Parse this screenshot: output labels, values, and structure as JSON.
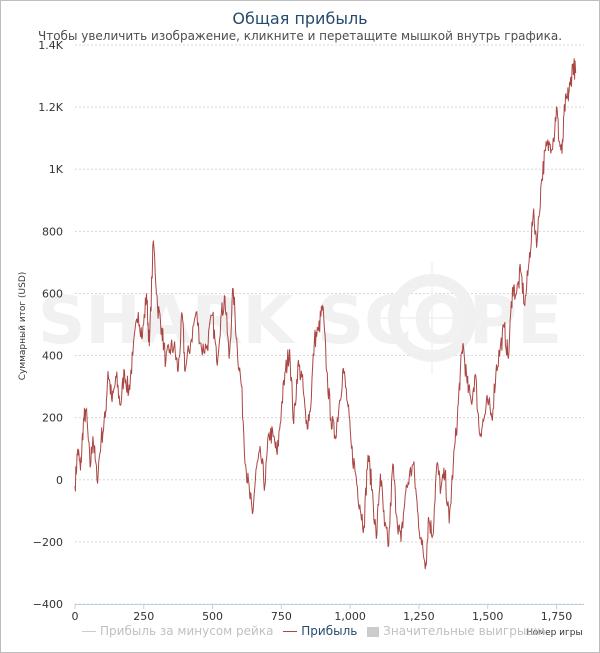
{
  "chart": {
    "title": "Общая прибыль",
    "subtitle": "Чтобы увеличить изображение, кликните и перетащите мышкой внутрь графика.",
    "watermark": "SHARK SCOPE"
  },
  "legend": [
    {
      "label": "Прибыль за минусом рейка",
      "color": "#cccccc",
      "symbol": "line",
      "enabled": false
    },
    {
      "label": "Прибыль",
      "color": "#aa4643",
      "symbol": "line",
      "enabled": true
    },
    {
      "label": "Значительные выигрыши",
      "color": "#cccccc",
      "symbol": "box",
      "enabled": false
    }
  ],
  "colors": {
    "series": "#aa4643",
    "grid": "#d8d8d8",
    "axis": "#c0d0e0",
    "title": "#274b6d",
    "watermark": "#f1f1f1"
  },
  "chart_data": {
    "type": "line",
    "title": "Общая прибыль",
    "subtitle": "Чтобы увеличить изображение, кликните и перетащите мышкой внутрь графика.",
    "xlabel": "Номер игры",
    "ylabel": "Суммарный итог (USD)",
    "xlim": [
      0,
      1850
    ],
    "ylim": [
      -400,
      1400
    ],
    "grid": true,
    "legend_position": "bottom",
    "x_ticks": [
      0,
      250,
      500,
      750,
      1000,
      1250,
      1500,
      1750
    ],
    "x_tick_labels": [
      "0",
      "250",
      "500",
      "750",
      "1,000",
      "1,250",
      "1,500",
      "1,750"
    ],
    "y_ticks": [
      -400,
      -200,
      0,
      200,
      400,
      600,
      800,
      1000,
      1200,
      1400
    ],
    "y_tick_labels": [
      "−400",
      "−200",
      "0",
      "200",
      "400",
      "600",
      "800",
      "1K",
      "1.2K",
      "1.4K"
    ],
    "series": [
      {
        "name": "Прибыль",
        "color": "#aa4643",
        "points": [
          [
            0,
            -20
          ],
          [
            10,
            100
          ],
          [
            20,
            30
          ],
          [
            30,
            180
          ],
          [
            40,
            225
          ],
          [
            55,
            40
          ],
          [
            65,
            140
          ],
          [
            80,
            0
          ],
          [
            95,
            130
          ],
          [
            110,
            200
          ],
          [
            120,
            350
          ],
          [
            135,
            250
          ],
          [
            150,
            330
          ],
          [
            165,
            240
          ],
          [
            180,
            350
          ],
          [
            195,
            280
          ],
          [
            210,
            400
          ],
          [
            230,
            540
          ],
          [
            245,
            460
          ],
          [
            260,
            600
          ],
          [
            270,
            430
          ],
          [
            285,
            770
          ],
          [
            300,
            560
          ],
          [
            315,
            490
          ],
          [
            330,
            380
          ],
          [
            345,
            420
          ],
          [
            360,
            430
          ],
          [
            375,
            350
          ],
          [
            390,
            530
          ],
          [
            400,
            350
          ],
          [
            420,
            440
          ],
          [
            440,
            540
          ],
          [
            460,
            420
          ],
          [
            480,
            430
          ],
          [
            500,
            530
          ],
          [
            515,
            380
          ],
          [
            530,
            520
          ],
          [
            545,
            590
          ],
          [
            560,
            390
          ],
          [
            575,
            615
          ],
          [
            590,
            420
          ],
          [
            605,
            300
          ],
          [
            620,
            50
          ],
          [
            635,
            -50
          ],
          [
            645,
            -110
          ],
          [
            660,
            40
          ],
          [
            675,
            80
          ],
          [
            690,
            -20
          ],
          [
            705,
            150
          ],
          [
            720,
            140
          ],
          [
            735,
            80
          ],
          [
            750,
            230
          ],
          [
            765,
            350
          ],
          [
            780,
            420
          ],
          [
            795,
            180
          ],
          [
            810,
            370
          ],
          [
            825,
            330
          ],
          [
            840,
            180
          ],
          [
            855,
            220
          ],
          [
            870,
            450
          ],
          [
            885,
            480
          ],
          [
            900,
            560
          ],
          [
            915,
            350
          ],
          [
            930,
            200
          ],
          [
            945,
            140
          ],
          [
            960,
            240
          ],
          [
            975,
            360
          ],
          [
            990,
            250
          ],
          [
            1005,
            100
          ],
          [
            1020,
            20
          ],
          [
            1035,
            -80
          ],
          [
            1050,
            -150
          ],
          [
            1065,
            80
          ],
          [
            1080,
            -30
          ],
          [
            1095,
            -190
          ],
          [
            1110,
            20
          ],
          [
            1125,
            -150
          ],
          [
            1140,
            -210
          ],
          [
            1155,
            50
          ],
          [
            1170,
            -120
          ],
          [
            1185,
            -200
          ],
          [
            1200,
            -50
          ],
          [
            1215,
            10
          ],
          [
            1230,
            50
          ],
          [
            1245,
            -100
          ],
          [
            1260,
            -210
          ],
          [
            1275,
            -270
          ],
          [
            1285,
            -120
          ],
          [
            1300,
            -180
          ],
          [
            1315,
            50
          ],
          [
            1330,
            -30
          ],
          [
            1345,
            20
          ],
          [
            1360,
            -140
          ],
          [
            1375,
            50
          ],
          [
            1390,
            200
          ],
          [
            1400,
            340
          ],
          [
            1410,
            440
          ],
          [
            1425,
            310
          ],
          [
            1440,
            250
          ],
          [
            1455,
            340
          ],
          [
            1470,
            150
          ],
          [
            1485,
            190
          ],
          [
            1500,
            250
          ],
          [
            1515,
            200
          ],
          [
            1530,
            350
          ],
          [
            1545,
            420
          ],
          [
            1560,
            490
          ],
          [
            1575,
            390
          ],
          [
            1590,
            620
          ],
          [
            1605,
            600
          ],
          [
            1620,
            670
          ],
          [
            1635,
            560
          ],
          [
            1650,
            700
          ],
          [
            1665,
            850
          ],
          [
            1680,
            770
          ],
          [
            1695,
            960
          ],
          [
            1710,
            1060
          ],
          [
            1725,
            1080
          ],
          [
            1740,
            1100
          ],
          [
            1750,
            1200
          ],
          [
            1760,
            1090
          ],
          [
            1770,
            1050
          ],
          [
            1780,
            1200
          ],
          [
            1790,
            1230
          ],
          [
            1800,
            1270
          ],
          [
            1810,
            1340
          ],
          [
            1820,
            1310
          ]
        ]
      }
    ]
  }
}
